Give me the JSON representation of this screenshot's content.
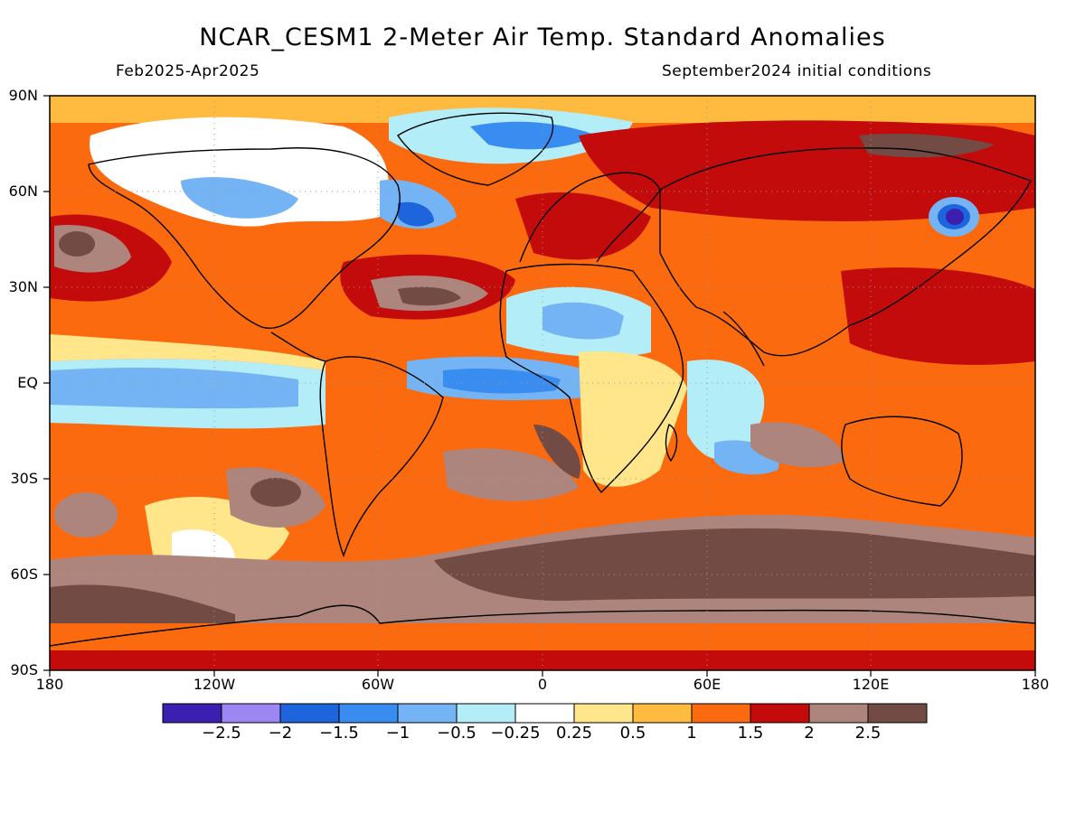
{
  "title": "NCAR_CESM1 2-Meter Air Temp. Standard Anomalies",
  "period": "Feb2025-Apr2025",
  "initial_conditions": "September2024 initial conditions",
  "lat_labels": [
    "90N",
    "60N",
    "30N",
    "EQ",
    "30S",
    "60S",
    "90S"
  ],
  "lon_labels": [
    "180",
    "120W",
    "60W",
    "0",
    "60E",
    "120E",
    "180"
  ],
  "colorbar": {
    "colors": [
      "#3b1fb0",
      "#9c86f3",
      "#1e64dc",
      "#3a8df0",
      "#74b4f4",
      "#b3edf8",
      "#ffffff",
      "#ffe68a",
      "#ffbb3f",
      "#fb6a0f",
      "#c30b0b",
      "#ae857d",
      "#734b45"
    ],
    "labels": [
      "-2.5",
      "-2",
      "-1.5",
      "-1",
      "-0.5",
      "-0.25",
      "0.25",
      "0.5",
      "1",
      "1.5",
      "2",
      "2.5"
    ]
  },
  "icons": {
    "map": "world-temperature-anomaly-map",
    "gridlines": "dotted-lat-lon-grid"
  }
}
